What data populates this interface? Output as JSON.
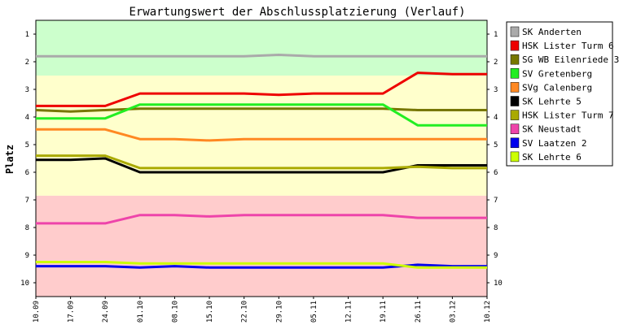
{
  "chart_data": {
    "type": "line",
    "title": "Erwartungswert der Abschlussplatzierung (Verlauf)",
    "ylabel": "Platz",
    "xlabel": "",
    "x": [
      "10.09",
      "17.09",
      "24.09",
      "01.10",
      "08.10",
      "15.10",
      "22.10",
      "29.10",
      "05.11",
      "12.11",
      "19.11",
      "26.11",
      "03.12",
      "10.12"
    ],
    "ylim": [
      0.5,
      10.5
    ],
    "y_reversed": true,
    "yticks": [
      1,
      2,
      3,
      4,
      5,
      6,
      7,
      8,
      9,
      10
    ],
    "bands": [
      {
        "from": 0.5,
        "to": 2.5,
        "color": "#ccffcc"
      },
      {
        "from": 2.5,
        "to": 6.85,
        "color": "#ffffcc"
      },
      {
        "from": 6.85,
        "to": 10.5,
        "color": "#ffcccc"
      }
    ],
    "grid": false,
    "legend_position": "right",
    "series": [
      {
        "name": "SK Anderten",
        "color": "#aaaaaa",
        "values": [
          1.8,
          1.8,
          1.8,
          1.8,
          1.8,
          1.8,
          1.8,
          1.75,
          1.8,
          1.8,
          1.8,
          1.8,
          1.8,
          1.8
        ]
      },
      {
        "name": "HSK Lister Turm 6",
        "color": "#ee0000",
        "values": [
          3.6,
          3.6,
          3.6,
          3.15,
          3.15,
          3.15,
          3.15,
          3.2,
          3.15,
          3.15,
          3.15,
          2.4,
          2.45,
          2.45
        ]
      },
      {
        "name": "SG WB Eilenriede 3",
        "color": "#777700",
        "values": [
          3.75,
          3.8,
          3.75,
          3.7,
          3.7,
          3.7,
          3.7,
          3.7,
          3.7,
          3.7,
          3.7,
          3.75,
          3.75,
          3.75
        ]
      },
      {
        "name": "SV Gretenberg",
        "color": "#22ee22",
        "values": [
          4.05,
          4.05,
          4.05,
          3.55,
          3.55,
          3.55,
          3.55,
          3.55,
          3.55,
          3.55,
          3.55,
          4.3,
          4.3,
          4.3
        ]
      },
      {
        "name": "SVg Calenberg",
        "color": "#ff8822",
        "values": [
          4.45,
          4.45,
          4.45,
          4.8,
          4.8,
          4.85,
          4.8,
          4.8,
          4.8,
          4.8,
          4.8,
          4.8,
          4.8,
          4.8
        ]
      },
      {
        "name": "SK Lehrte 5",
        "color": "#000000",
        "values": [
          5.55,
          5.55,
          5.5,
          6.0,
          6.0,
          6.0,
          6.0,
          6.0,
          6.0,
          6.0,
          6.0,
          5.75,
          5.75,
          5.75
        ]
      },
      {
        "name": "HSK Lister Turm 7",
        "color": "#aaaa00",
        "values": [
          5.4,
          5.4,
          5.4,
          5.85,
          5.85,
          5.85,
          5.85,
          5.85,
          5.85,
          5.85,
          5.85,
          5.8,
          5.85,
          5.85
        ]
      },
      {
        "name": "SK Neustadt",
        "color": "#ee44aa",
        "values": [
          7.85,
          7.85,
          7.85,
          7.55,
          7.55,
          7.6,
          7.55,
          7.55,
          7.55,
          7.55,
          7.55,
          7.65,
          7.65,
          7.65
        ]
      },
      {
        "name": "SV Laatzen 2",
        "color": "#0000ee",
        "values": [
          9.4,
          9.4,
          9.4,
          9.45,
          9.4,
          9.45,
          9.45,
          9.45,
          9.45,
          9.45,
          9.45,
          9.35,
          9.4,
          9.4
        ]
      },
      {
        "name": "SK Lehrte 6",
        "color": "#ccff00",
        "values": [
          9.25,
          9.25,
          9.25,
          9.3,
          9.3,
          9.3,
          9.3,
          9.3,
          9.3,
          9.3,
          9.3,
          9.45,
          9.45,
          9.45
        ]
      }
    ]
  }
}
